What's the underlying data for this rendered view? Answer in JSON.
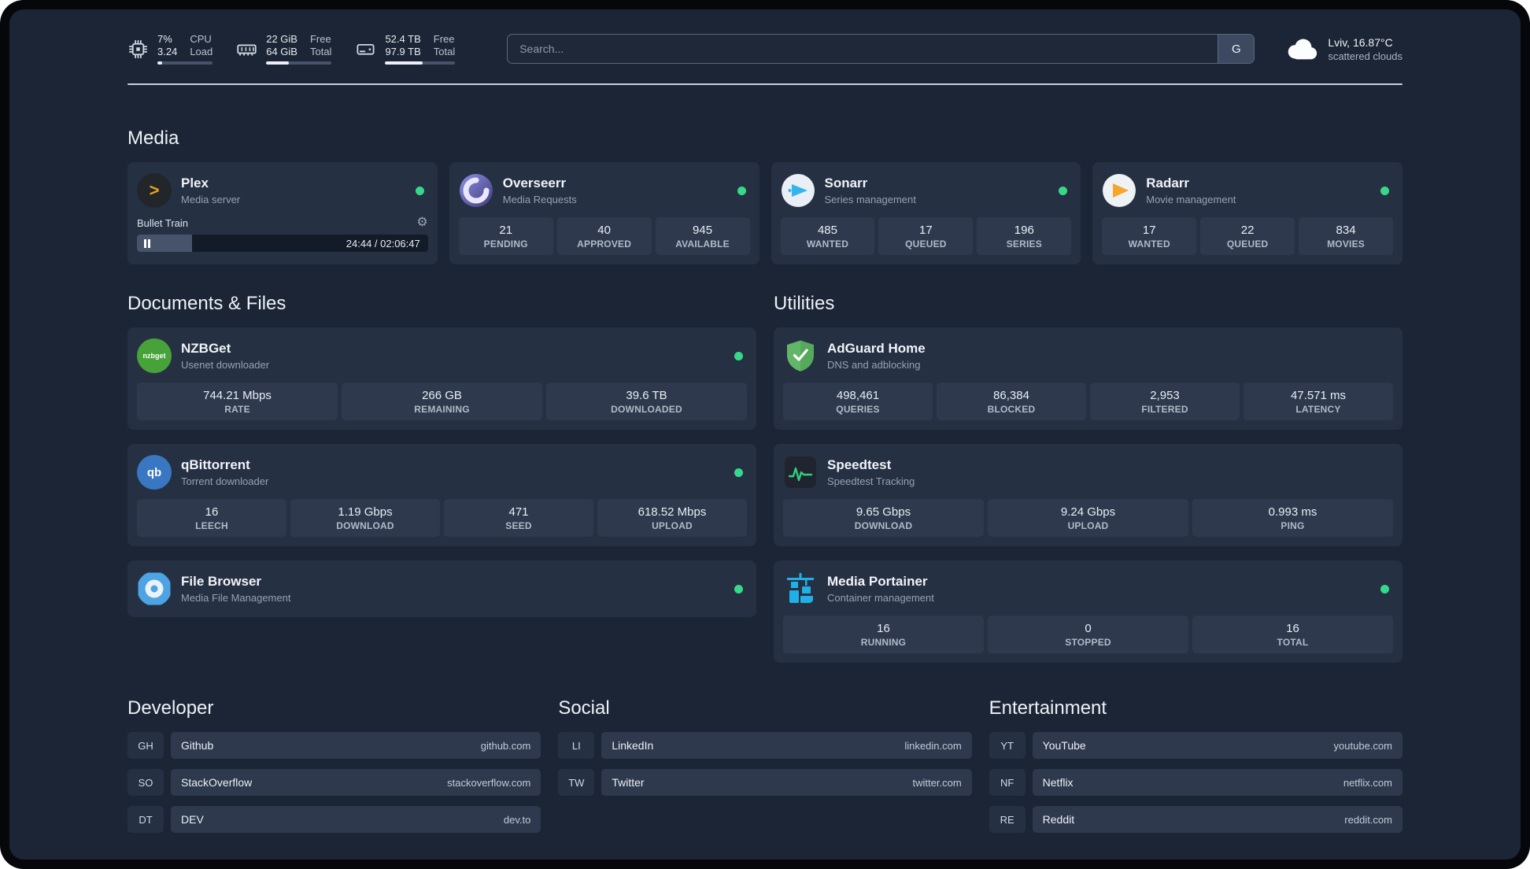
{
  "topbar": {
    "cpu": {
      "value1": "7%",
      "value2": "3.24",
      "label1": "CPU",
      "label2": "Load",
      "bar_percent": 8
    },
    "memory": {
      "value1": "22 GiB",
      "value2": "64 GiB",
      "label1": "Free",
      "label2": "Total",
      "bar_percent": 34
    },
    "disk": {
      "value1": "52.4 TB",
      "value2": "97.9 TB",
      "label1": "Free",
      "label2": "Total",
      "bar_percent": 54
    },
    "search": {
      "placeholder": "Search...",
      "button_label": "G"
    },
    "weather": {
      "location": "Lviv, 16.87°C",
      "condition": "scattered clouds"
    }
  },
  "sections": {
    "media": {
      "title": "Media",
      "plex": {
        "name": "Plex",
        "subtitle": "Media server",
        "track": "Bullet Train",
        "time": "24:44 / 02:06:47",
        "progress_percent": 19
      },
      "overseerr": {
        "name": "Overseerr",
        "subtitle": "Media Requests",
        "stats": [
          {
            "value": "21",
            "label": "PENDING"
          },
          {
            "value": "40",
            "label": "APPROVED"
          },
          {
            "value": "945",
            "label": "AVAILABLE"
          }
        ]
      },
      "sonarr": {
        "name": "Sonarr",
        "subtitle": "Series management",
        "stats": [
          {
            "value": "485",
            "label": "WANTED"
          },
          {
            "value": "17",
            "label": "QUEUED"
          },
          {
            "value": "196",
            "label": "SERIES"
          }
        ]
      },
      "radarr": {
        "name": "Radarr",
        "subtitle": "Movie management",
        "stats": [
          {
            "value": "17",
            "label": "WANTED"
          },
          {
            "value": "22",
            "label": "QUEUED"
          },
          {
            "value": "834",
            "label": "MOVIES"
          }
        ]
      }
    },
    "documents": {
      "title": "Documents & Files",
      "nzbget": {
        "name": "NZBGet",
        "subtitle": "Usenet downloader",
        "stats": [
          {
            "value": "744.21 Mbps",
            "label": "RATE"
          },
          {
            "value": "266 GB",
            "label": "REMAINING"
          },
          {
            "value": "39.6 TB",
            "label": "DOWNLOADED"
          }
        ]
      },
      "qbittorrent": {
        "name": "qBittorrent",
        "subtitle": "Torrent downloader",
        "stats": [
          {
            "value": "16",
            "label": "LEECH"
          },
          {
            "value": "1.19 Gbps",
            "label": "DOWNLOAD"
          },
          {
            "value": "471",
            "label": "SEED"
          },
          {
            "value": "618.52 Mbps",
            "label": "UPLOAD"
          }
        ]
      },
      "filebrowser": {
        "name": "File Browser",
        "subtitle": "Media File Management"
      }
    },
    "utilities": {
      "title": "Utilities",
      "adguard": {
        "name": "AdGuard Home",
        "subtitle": "DNS and adblocking",
        "stats": [
          {
            "value": "498,461",
            "label": "QUERIES"
          },
          {
            "value": "86,384",
            "label": "BLOCKED"
          },
          {
            "value": "2,953",
            "label": "FILTERED"
          },
          {
            "value": "47.571 ms",
            "label": "LATENCY"
          }
        ]
      },
      "speedtest": {
        "name": "Speedtest",
        "subtitle": "Speedtest Tracking",
        "stats": [
          {
            "value": "9.65 Gbps",
            "label": "DOWNLOAD"
          },
          {
            "value": "9.24 Gbps",
            "label": "UPLOAD"
          },
          {
            "value": "0.993 ms",
            "label": "PING"
          }
        ]
      },
      "portainer": {
        "name": "Media Portainer",
        "subtitle": "Container management",
        "stats": [
          {
            "value": "16",
            "label": "RUNNING"
          },
          {
            "value": "0",
            "label": "STOPPED"
          },
          {
            "value": "16",
            "label": "TOTAL"
          }
        ]
      }
    },
    "bookmarks": [
      {
        "title": "Developer",
        "items": [
          {
            "abbr": "GH",
            "name": "Github",
            "url": "github.com"
          },
          {
            "abbr": "SO",
            "name": "StackOverflow",
            "url": "stackoverflow.com"
          },
          {
            "abbr": "DT",
            "name": "DEV",
            "url": "dev.to"
          }
        ]
      },
      {
        "title": "Social",
        "items": [
          {
            "abbr": "LI",
            "name": "LinkedIn",
            "url": "linkedin.com"
          },
          {
            "abbr": "TW",
            "name": "Twitter",
            "url": "twitter.com"
          }
        ]
      },
      {
        "title": "Entertainment",
        "items": [
          {
            "abbr": "YT",
            "name": "YouTube",
            "url": "youtube.com"
          },
          {
            "abbr": "NF",
            "name": "Netflix",
            "url": "netflix.com"
          },
          {
            "abbr": "RE",
            "name": "Reddit",
            "url": "reddit.com"
          }
        ]
      }
    ]
  },
  "icons": {
    "plex_glyph": ">",
    "gear_glyph": "⚙",
    "nzbget_text": "nzbget",
    "qbittorrent_text": "qb"
  }
}
